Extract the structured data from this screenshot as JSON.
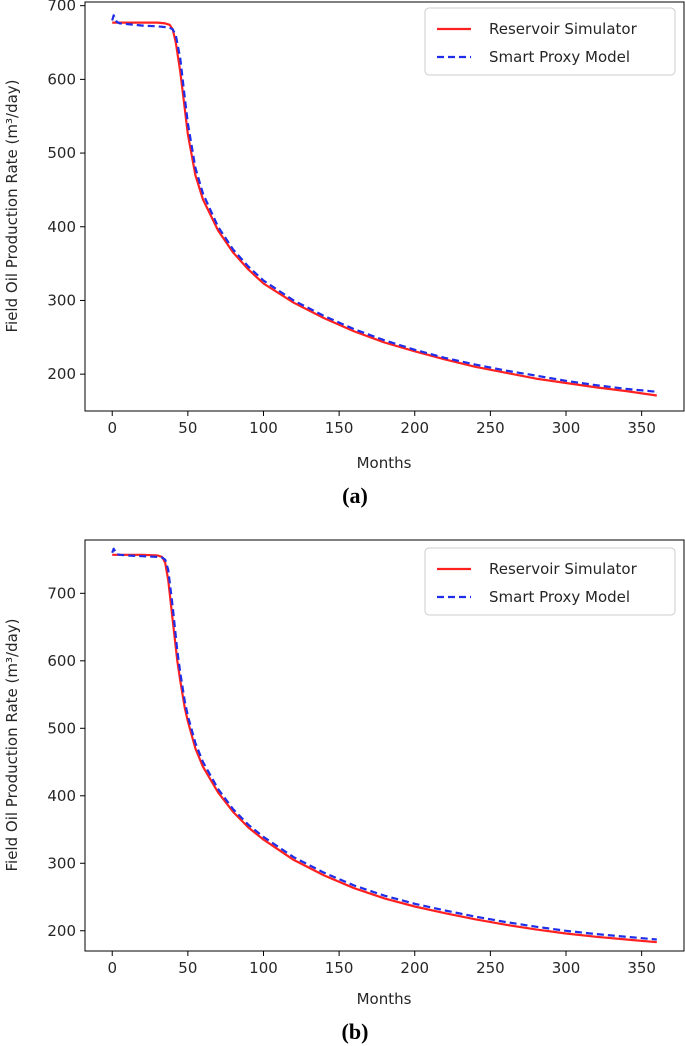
{
  "colors": {
    "simulator": "#ff2020",
    "proxy": "#1f2ee8"
  },
  "chart_data": [
    {
      "type": "line",
      "panel_label": "(a)",
      "xlabel": "Months",
      "ylabel": "Field Oil Production Rate (m³/day)",
      "xlim": [
        -18,
        378
      ],
      "ylim": [
        150,
        705
      ],
      "xticks": [
        0,
        50,
        100,
        150,
        200,
        250,
        300,
        350
      ],
      "yticks": [
        200,
        300,
        400,
        500,
        600,
        700
      ],
      "legend_position": "top-right",
      "grid": false,
      "series": [
        {
          "name": "Reservoir Simulator",
          "style": "solid",
          "x": [
            0,
            10,
            20,
            30,
            35,
            38,
            40,
            42,
            45,
            48,
            50,
            55,
            60,
            70,
            80,
            90,
            100,
            120,
            140,
            160,
            180,
            200,
            220,
            240,
            260,
            280,
            300,
            320,
            340,
            360
          ],
          "y": [
            677,
            677,
            677,
            677,
            676,
            674,
            668,
            650,
            610,
            560,
            525,
            470,
            437,
            395,
            365,
            342,
            323,
            297,
            276,
            258,
            243,
            231,
            220,
            210,
            202,
            194,
            188,
            182,
            177,
            171
          ]
        },
        {
          "name": "Smart Proxy Model",
          "style": "dashed",
          "x": [
            0,
            1,
            2,
            3,
            5,
            10,
            20,
            30,
            35,
            38,
            40,
            42,
            45,
            48,
            50,
            55,
            60,
            70,
            80,
            90,
            100,
            120,
            140,
            160,
            180,
            200,
            220,
            240,
            260,
            280,
            300,
            320,
            340,
            360
          ],
          "y": [
            680,
            687,
            682,
            678,
            676,
            675,
            673,
            672,
            671,
            670,
            668,
            660,
            628,
            575,
            540,
            480,
            445,
            400,
            369,
            346,
            327,
            300,
            279,
            261,
            246,
            233,
            222,
            213,
            205,
            198,
            191,
            185,
            180,
            176
          ]
        }
      ]
    },
    {
      "type": "line",
      "panel_label": "(b)",
      "xlabel": "Months",
      "ylabel": "Field Oil Production Rate (m³/day)",
      "xlim": [
        -18,
        378
      ],
      "ylim": [
        170,
        779
      ],
      "xticks": [
        0,
        50,
        100,
        150,
        200,
        250,
        300,
        350
      ],
      "yticks": [
        200,
        300,
        400,
        500,
        600,
        700
      ],
      "legend_position": "top-right",
      "grid": false,
      "series": [
        {
          "name": "Reservoir Simulator",
          "style": "solid",
          "x": [
            0,
            10,
            20,
            30,
            33,
            35,
            37,
            40,
            43,
            45,
            48,
            50,
            55,
            60,
            70,
            80,
            90,
            100,
            120,
            140,
            160,
            180,
            200,
            220,
            240,
            260,
            280,
            300,
            320,
            340,
            360
          ],
          "y": [
            757,
            757,
            757,
            756,
            754,
            745,
            720,
            660,
            600,
            570,
            530,
            510,
            470,
            443,
            405,
            376,
            353,
            335,
            305,
            282,
            263,
            248,
            236,
            226,
            217,
            209,
            202,
            196,
            191,
            187,
            183
          ]
        },
        {
          "name": "Smart Proxy Model",
          "style": "dashed",
          "x": [
            0,
            1,
            2,
            3,
            5,
            10,
            20,
            30,
            33,
            35,
            37,
            40,
            43,
            45,
            48,
            50,
            55,
            60,
            70,
            80,
            90,
            100,
            120,
            140,
            160,
            180,
            200,
            220,
            240,
            260,
            280,
            300,
            320,
            340,
            360
          ],
          "y": [
            760,
            766,
            762,
            758,
            757,
            756,
            755,
            754,
            753,
            750,
            735,
            680,
            615,
            582,
            540,
            518,
            478,
            450,
            410,
            380,
            357,
            339,
            309,
            286,
            267,
            252,
            240,
            230,
            221,
            213,
            206,
            200,
            195,
            191,
            187
          ]
        }
      ]
    }
  ]
}
